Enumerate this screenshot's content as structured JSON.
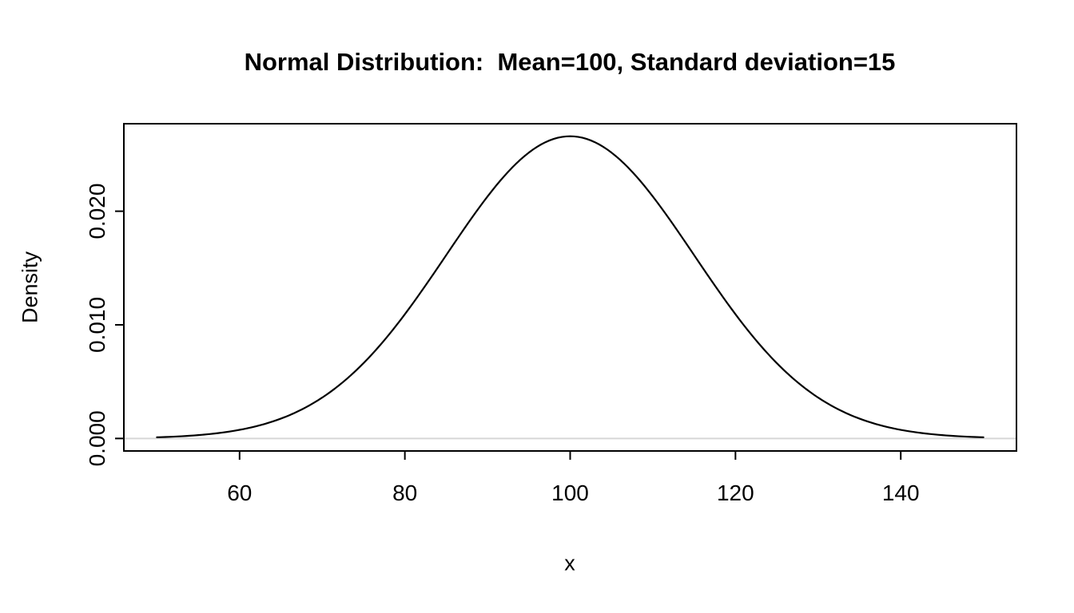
{
  "chart_data": {
    "type": "line",
    "title": "Normal Distribution:  Mean=100, Standard deviation=15",
    "xlabel": "x",
    "ylabel": "Density",
    "legend": "none",
    "grid": false,
    "line_color": "#000000",
    "background_color": "#ffffff",
    "baseline": {
      "y": 0,
      "color": "#d6d6d6"
    },
    "curve": {
      "distribution": "normal",
      "mean": 100,
      "sd": 15,
      "x_min": 50,
      "x_max": 150,
      "step": 0.5,
      "peak_density": 0.0266
    },
    "xlim": [
      46,
      154
    ],
    "ylim": [
      -0.0011,
      0.0277
    ],
    "x_ticks": [
      {
        "value": 60,
        "label": "60"
      },
      {
        "value": 80,
        "label": "80"
      },
      {
        "value": 100,
        "label": "100"
      },
      {
        "value": 120,
        "label": "120"
      },
      {
        "value": 140,
        "label": "140"
      }
    ],
    "y_ticks": [
      {
        "value": 0.0,
        "label": "0.000"
      },
      {
        "value": 0.01,
        "label": "0.010"
      },
      {
        "value": 0.02,
        "label": "0.020"
      }
    ],
    "points": [
      {
        "x": 50,
        "density": 0.000103
      },
      {
        "x": 55,
        "density": 0.000296
      },
      {
        "x": 60,
        "density": 0.00076
      },
      {
        "x": 65,
        "density": 0.001748
      },
      {
        "x": 70,
        "density": 0.003599
      },
      {
        "x": 75,
        "density": 0.006632
      },
      {
        "x": 80,
        "density": 0.010934
      },
      {
        "x": 85,
        "density": 0.016131
      },
      {
        "x": 90,
        "density": 0.021297
      },
      {
        "x": 95,
        "density": 0.025159
      },
      {
        "x": 100,
        "density": 0.026596
      },
      {
        "x": 105,
        "density": 0.025159
      },
      {
        "x": 110,
        "density": 0.021297
      },
      {
        "x": 115,
        "density": 0.016131
      },
      {
        "x": 120,
        "density": 0.010934
      },
      {
        "x": 125,
        "density": 0.006632
      },
      {
        "x": 130,
        "density": 0.003599
      },
      {
        "x": 135,
        "density": 0.001748
      },
      {
        "x": 140,
        "density": 0.00076
      },
      {
        "x": 145,
        "density": 0.000296
      },
      {
        "x": 150,
        "density": 0.000103
      }
    ]
  }
}
